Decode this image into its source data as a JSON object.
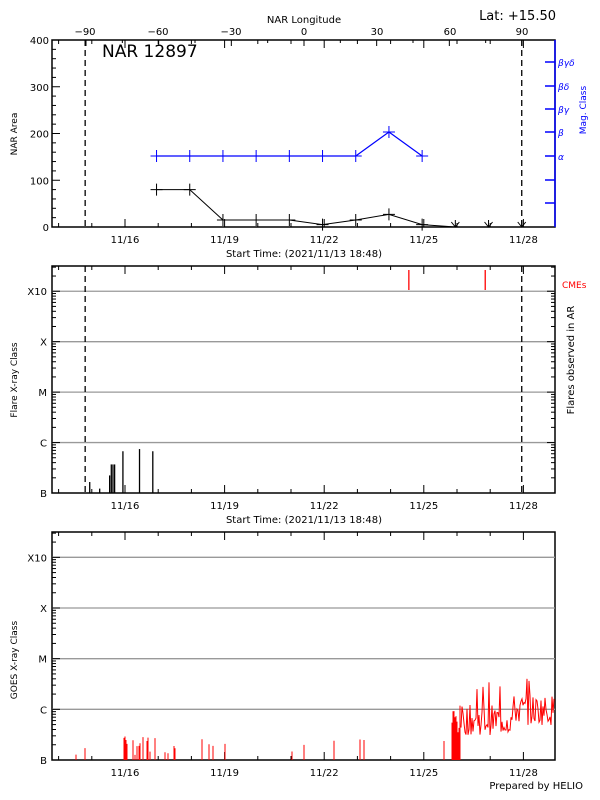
{
  "header": {
    "region_title": "NAR 12897",
    "latitude": "Lat: +15.50",
    "longitude_axis_label": "NAR Longitude",
    "footer": "Prepared by HELIO"
  },
  "chart_data": [
    {
      "id": "panel1",
      "type": "line",
      "title": "NAR 12897",
      "xlabel": "Start Time: (2021/11/13 18:48)",
      "ylabel": "NAR Area",
      "ylabel_right": "Mag. Class",
      "x_top_label": "NAR Longitude",
      "x_top_ticks": [
        "-90",
        "-60",
        "-30",
        "0",
        "30",
        "60",
        "90"
      ],
      "x_ticks": [
        "11/16",
        "11/19",
        "11/22",
        "11/25",
        "11/28"
      ],
      "y_ticks": [
        "0",
        "100",
        "200",
        "300",
        "400"
      ],
      "ylim": [
        0,
        400
      ],
      "right_ticks": [
        "α",
        "β",
        "βγ",
        "βδ",
        "βγδ"
      ],
      "limb_markers_day": [
        14.8,
        27.95
      ],
      "series": [
        {
          "name": "NAR Area",
          "color": "#000000",
          "x_day": [
            16.95,
            17.95,
            18.95,
            19.95,
            20.95,
            21.95,
            22.95,
            23.95,
            24.95,
            25.95,
            26.95,
            27.95
          ],
          "values": [
            80,
            80,
            15,
            15,
            15,
            5,
            15,
            27,
            5,
            0,
            0,
            0
          ]
        },
        {
          "name": "Mag. Class",
          "color": "#0000ff",
          "x_day": [
            16.95,
            17.95,
            18.95,
            19.95,
            20.95,
            21.95,
            22.95,
            23.95,
            24.95
          ],
          "values": [
            "α",
            "α",
            "α",
            "α",
            "α",
            "α",
            "α",
            "β",
            "α"
          ]
        }
      ]
    },
    {
      "id": "panel2",
      "type": "bar",
      "xlabel": "Start Time: (2021/11/13 18:48)",
      "ylabel": "Flare X-ray Class",
      "ylabel_right": "Flares observed in AR",
      "legend": "CMEs",
      "x_ticks": [
        "11/16",
        "11/19",
        "11/22",
        "11/25",
        "11/28"
      ],
      "y_ticks": [
        "B",
        "C",
        "M",
        "X",
        "X10"
      ],
      "flares_day": [
        15.6,
        15.9,
        16.2,
        16.25,
        16.3,
        16.35,
        16.6,
        17.1,
        17.5
      ],
      "flares_height_frac": [
        0.1,
        0.04,
        0.16,
        0.26,
        0.26,
        0.26,
        0.38,
        0.4,
        0.38
      ],
      "cmes_day": [
        24.55,
        26.85
      ],
      "limb_markers_day": [
        14.8,
        27.95
      ]
    },
    {
      "id": "panel3",
      "type": "line",
      "xlabel": "",
      "ylabel": "GOES X-ray Class",
      "x_ticks": [
        "11/16",
        "11/19",
        "11/22",
        "11/25",
        "11/28"
      ],
      "y_ticks": [
        "B",
        "C",
        "M",
        "X",
        "X10"
      ],
      "series": [
        {
          "name": "GOES flux",
          "color": "#ff0000"
        }
      ]
    }
  ],
  "colors": {
    "axis": "#000000",
    "grid": "#999999",
    "mag_class": "#0000ff",
    "cme": "#ff0000",
    "goes": "#ff0000"
  }
}
